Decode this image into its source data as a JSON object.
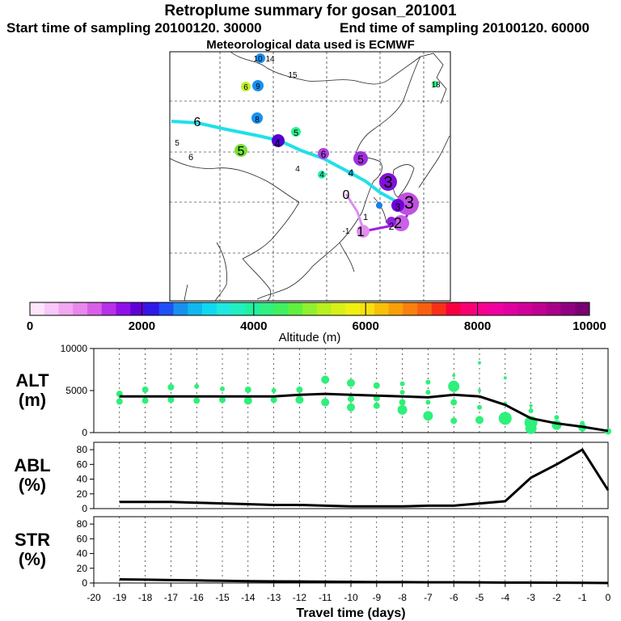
{
  "header": {
    "title": "Retroplume summary for gosan_201001",
    "start_time": "Start time of sampling 20100120. 30000",
    "end_time": "End time of sampling 20100120. 60000",
    "met_data": "Meteorological data used is ECMWF"
  },
  "colorbar": {
    "tick_labels": [
      "0",
      "2000",
      "4000",
      "6000",
      "8000",
      "10000"
    ],
    "label": "Altitude (m)",
    "colors": [
      "#fde6fd",
      "#f8c8f8",
      "#f0a8f0",
      "#e888ec",
      "#d860e8",
      "#b830e8",
      "#9010e8",
      "#6000d8",
      "#3018e8",
      "#2050f8",
      "#1890f0",
      "#10b8f0",
      "#10d8f0",
      "#20e8e0",
      "#20f0c0",
      "#20f0a0",
      "#30f080",
      "#40f060",
      "#60f040",
      "#90f030",
      "#b8f020",
      "#d8f018",
      "#f0f010",
      "#f8e010",
      "#f8c008",
      "#f8a008",
      "#f88010",
      "#f86010",
      "#f83018",
      "#f80040",
      "#f80070",
      "#f80090",
      "#f000a0",
      "#e000a0",
      "#d00098",
      "#c00090",
      "#a80088",
      "#900080",
      "#780070"
    ]
  },
  "map": {
    "trajectory_labels": [
      "6",
      "5",
      "4",
      "3",
      "2",
      "1",
      "0",
      "5",
      "6",
      "4",
      "3",
      "2",
      "1",
      "-1",
      "6",
      "8",
      "9",
      "10",
      "14",
      "15",
      "18",
      "4",
      "5",
      "6",
      "5",
      "4",
      "3"
    ]
  },
  "chart_data": [
    {
      "type": "scatter",
      "title": "",
      "ylabel_line1": "ALT",
      "ylabel_line2": "(m)",
      "ylim": [
        0,
        10000
      ],
      "yticks": [
        "10000",
        "5000",
        "0"
      ],
      "ytick_values": [
        10000,
        5000,
        0
      ],
      "xlim": [
        -20,
        0
      ],
      "median_line": {
        "x": [
          -19,
          -18,
          -17,
          -16,
          -15,
          -14,
          -13,
          -12,
          -11,
          -10,
          -9,
          -8,
          -7,
          -6,
          -5,
          -4,
          -3,
          -2,
          -1,
          0
        ],
        "y": [
          4300,
          4300,
          4300,
          4300,
          4300,
          4300,
          4300,
          4500,
          4600,
          4500,
          4400,
          4300,
          4200,
          4500,
          4300,
          3300,
          1700,
          1100,
          700,
          200
        ]
      },
      "points": [
        {
          "x": -19,
          "y": 4600,
          "r": 4
        },
        {
          "x": -19,
          "y": 3700,
          "r": 4
        },
        {
          "x": -18,
          "y": 5100,
          "r": 4
        },
        {
          "x": -18,
          "y": 3800,
          "r": 4
        },
        {
          "x": -17,
          "y": 5400,
          "r": 4
        },
        {
          "x": -17,
          "y": 3900,
          "r": 4
        },
        {
          "x": -16,
          "y": 5500,
          "r": 3
        },
        {
          "x": -16,
          "y": 3800,
          "r": 4
        },
        {
          "x": -15,
          "y": 5200,
          "r": 3
        },
        {
          "x": -15,
          "y": 3900,
          "r": 4
        },
        {
          "x": -14,
          "y": 5100,
          "r": 4
        },
        {
          "x": -14,
          "y": 3800,
          "r": 5
        },
        {
          "x": -13,
          "y": 5000,
          "r": 3
        },
        {
          "x": -13,
          "y": 3900,
          "r": 4
        },
        {
          "x": -12,
          "y": 5100,
          "r": 4
        },
        {
          "x": -12,
          "y": 3900,
          "r": 5
        },
        {
          "x": -11,
          "y": 6300,
          "r": 5
        },
        {
          "x": -11,
          "y": 3600,
          "r": 5
        },
        {
          "x": -10,
          "y": 5900,
          "r": 5
        },
        {
          "x": -10,
          "y": 4000,
          "r": 4
        },
        {
          "x": -10,
          "y": 3000,
          "r": 5
        },
        {
          "x": -9,
          "y": 5600,
          "r": 4
        },
        {
          "x": -9,
          "y": 4100,
          "r": 4
        },
        {
          "x": -9,
          "y": 3200,
          "r": 4
        },
        {
          "x": -8,
          "y": 5800,
          "r": 3
        },
        {
          "x": -8,
          "y": 4800,
          "r": 3
        },
        {
          "x": -8,
          "y": 3600,
          "r": 4
        },
        {
          "x": -8,
          "y": 2700,
          "r": 6
        },
        {
          "x": -7,
          "y": 6000,
          "r": 3
        },
        {
          "x": -7,
          "y": 4800,
          "r": 3
        },
        {
          "x": -7,
          "y": 3600,
          "r": 3
        },
        {
          "x": -7,
          "y": 2000,
          "r": 6
        },
        {
          "x": -6,
          "y": 6800,
          "r": 2
        },
        {
          "x": -6,
          "y": 5500,
          "r": 7
        },
        {
          "x": -6,
          "y": 3600,
          "r": 4
        },
        {
          "x": -6,
          "y": 1400,
          "r": 4
        },
        {
          "x": -5,
          "y": 8300,
          "r": 2
        },
        {
          "x": -5,
          "y": 5000,
          "r": 2
        },
        {
          "x": -5,
          "y": 3000,
          "r": 3
        },
        {
          "x": -5,
          "y": 1500,
          "r": 5
        },
        {
          "x": -4,
          "y": 6500,
          "r": 2
        },
        {
          "x": -4,
          "y": 3500,
          "r": 2
        },
        {
          "x": -4,
          "y": 1700,
          "r": 8
        },
        {
          "x": -3,
          "y": 3200,
          "r": 2
        },
        {
          "x": -3,
          "y": 2600,
          "r": 3
        },
        {
          "x": -3,
          "y": 1200,
          "r": 8
        },
        {
          "x": -3,
          "y": 500,
          "r": 7
        },
        {
          "x": -2,
          "y": 1800,
          "r": 3
        },
        {
          "x": -2,
          "y": 900,
          "r": 6
        },
        {
          "x": -1,
          "y": 1100,
          "r": 3
        },
        {
          "x": -1,
          "y": 600,
          "r": 5
        },
        {
          "x": 0,
          "y": 150,
          "r": 4
        }
      ],
      "point_color": "#2ef07a"
    },
    {
      "type": "line",
      "ylabel_line1": "ABL",
      "ylabel_line2": "(%)",
      "ylim": [
        0,
        90
      ],
      "yticks": [
        "80",
        "60",
        "40",
        "20",
        "0"
      ],
      "ytick_values": [
        80,
        60,
        40,
        20,
        0
      ],
      "xlim": [
        -20,
        0
      ],
      "x": [
        -19,
        -18,
        -17,
        -16,
        -15,
        -14,
        -13,
        -12,
        -11,
        -10,
        -9,
        -8,
        -7,
        -6,
        -5,
        -4,
        -3,
        -2,
        -1,
        0
      ],
      "y": [
        9,
        9,
        9,
        8,
        7,
        6,
        5,
        5,
        4,
        3,
        3,
        3,
        4,
        4,
        7,
        10,
        42,
        60,
        80,
        25
      ]
    },
    {
      "type": "line",
      "ylabel_line1": "STR",
      "ylabel_line2": "(%)",
      "ylim": [
        0,
        90
      ],
      "yticks": [
        "80",
        "60",
        "40",
        "20",
        "0"
      ],
      "ytick_values": [
        80,
        60,
        40,
        20,
        0
      ],
      "xlim": [
        -20,
        0
      ],
      "x": [
        -19,
        -18,
        -17,
        -16,
        -15,
        -14,
        -13,
        -12,
        -11,
        -10,
        -9,
        -8,
        -7,
        -6,
        -5,
        -4,
        -3,
        -2,
        -1,
        0
      ],
      "y": [
        5,
        4.5,
        4,
        3.5,
        3,
        2.5,
        2.2,
        2,
        1.8,
        1.5,
        1.3,
        1.2,
        1,
        1,
        0.8,
        0.6,
        0.5,
        0.4,
        0.3,
        0
      ]
    }
  ],
  "xaxis": {
    "tick_labels": [
      "-20",
      "-19",
      "-18",
      "-17",
      "-16",
      "-15",
      "-14",
      "-13",
      "-12",
      "-11",
      "-10",
      "-9",
      "-8",
      "-7",
      "-6",
      "-5",
      "-4",
      "-3",
      "-2",
      "-1",
      "0"
    ],
    "tick_values": [
      -20,
      -19,
      -18,
      -17,
      -16,
      -15,
      -14,
      -13,
      -12,
      -11,
      -10,
      -9,
      -8,
      -7,
      -6,
      -5,
      -4,
      -3,
      -2,
      -1,
      0
    ],
    "label": "Travel time (days)"
  }
}
